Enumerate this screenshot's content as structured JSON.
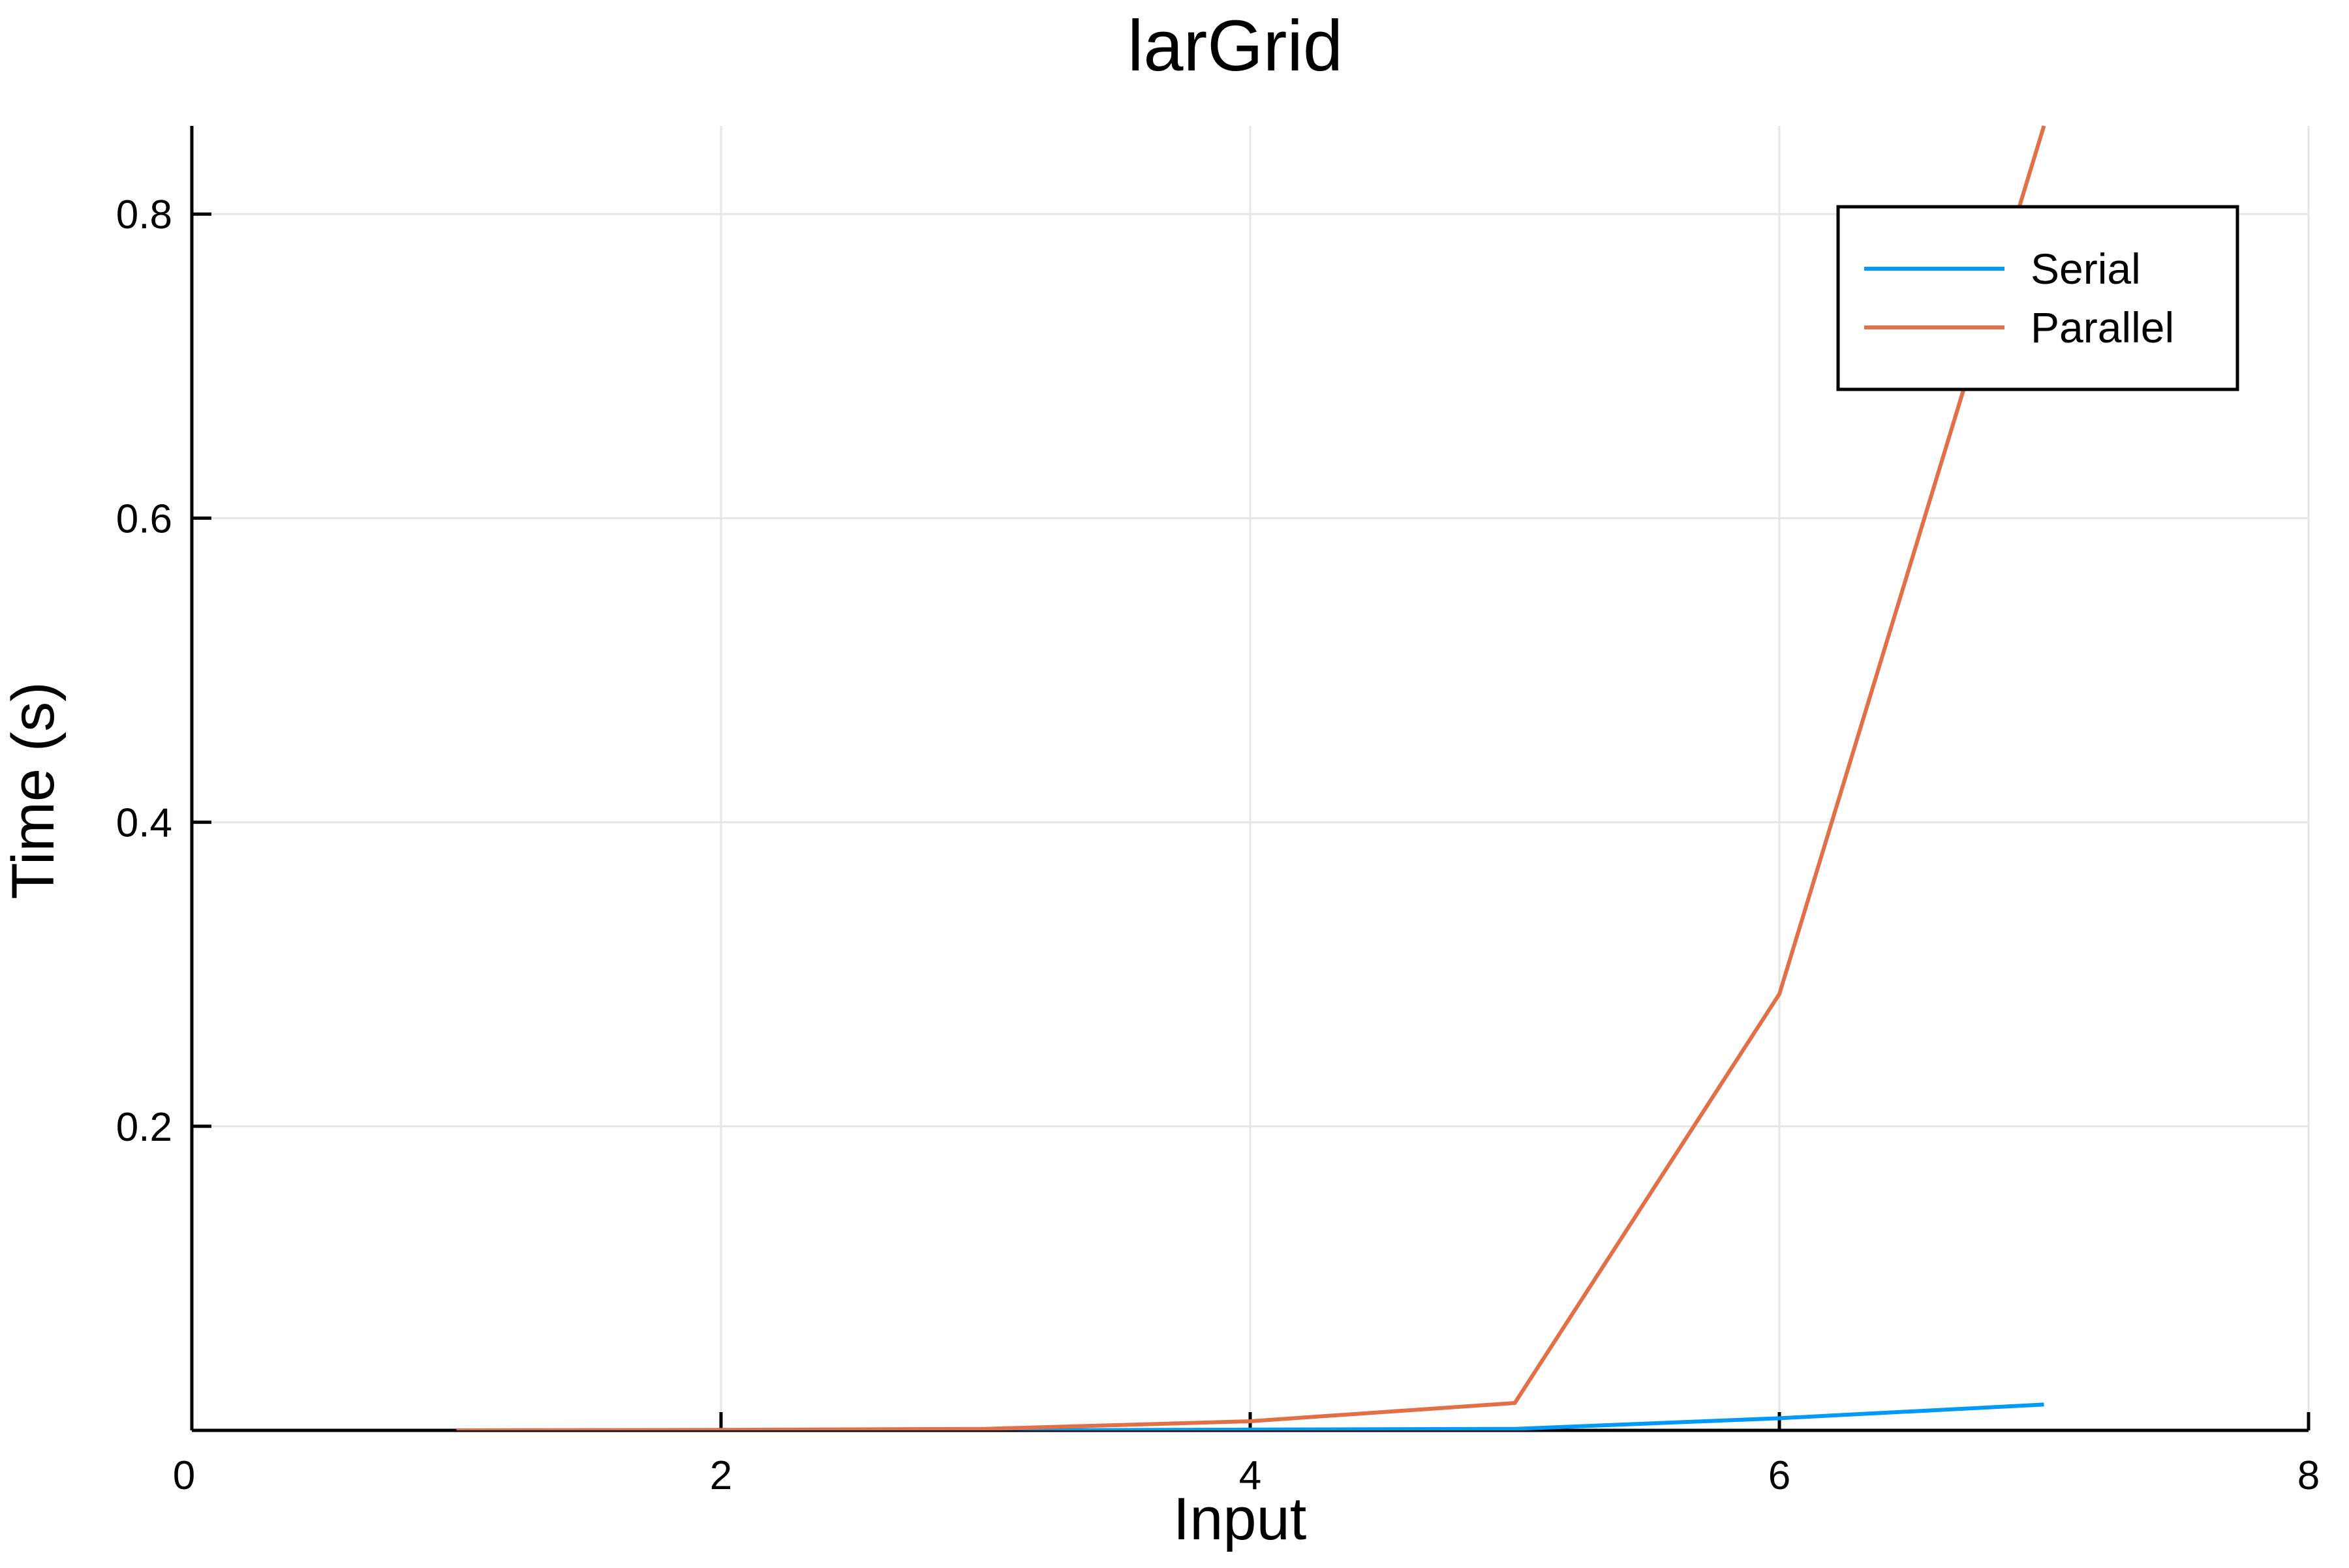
{
  "chart_data": {
    "type": "line",
    "title": "larGrid",
    "xlabel": "Input",
    "ylabel": "Time (s)",
    "xlim": [
      0,
      8
    ],
    "ylim": [
      0,
      0.858
    ],
    "x_ticks": [
      0,
      2,
      4,
      6,
      8
    ],
    "x_tick_labels": [
      "0",
      "2",
      "4",
      "6",
      "8"
    ],
    "y_ticks": [
      0.2,
      0.4,
      0.6,
      0.8
    ],
    "y_tick_labels": [
      "0.2",
      "0.4",
      "0.6",
      "0.8"
    ],
    "grid": true,
    "legend_position": "top-right",
    "series": [
      {
        "name": "Serial",
        "color": "#009AFA",
        "x": [
          1,
          2,
          3,
          4,
          5,
          6,
          7
        ],
        "y": [
          0.0,
          0.0,
          0.0,
          0.0005,
          0.001,
          0.008,
          0.017
        ]
      },
      {
        "name": "Parallel",
        "color": "#E36F47",
        "x": [
          1,
          2,
          3,
          4,
          5,
          6,
          7
        ],
        "y": [
          0.0,
          0.0003,
          0.001,
          0.006,
          0.018,
          0.287,
          0.858
        ]
      }
    ]
  }
}
